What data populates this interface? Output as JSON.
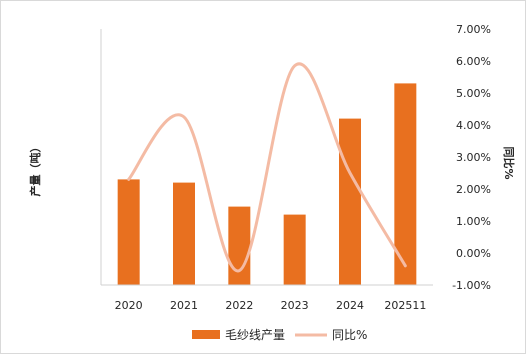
{
  "chart_data": {
    "type": "bar",
    "categories": [
      "2020",
      "2021",
      "2022",
      "2023",
      "2024",
      "202511"
    ],
    "series": [
      {
        "name": "毛纱线产量",
        "type": "bar",
        "axis": "left",
        "color": "#e8701f",
        "values": [
          2.3,
          2.2,
          1.45,
          1.2,
          4.2,
          5.3
        ]
      },
      {
        "name": "同比%",
        "type": "line",
        "axis": "right",
        "color": "#f4bba4",
        "smooth": true,
        "values": [
          2.3,
          4.25,
          -0.55,
          5.85,
          2.5,
          -0.4
        ]
      }
    ],
    "ylabel": "产量（吨）",
    "ylabel_right": "同比%",
    "y_right": {
      "min": -1.0,
      "max": 7.0,
      "ticks": [
        "-1.00%",
        "0.00%",
        "1.00%",
        "2.00%",
        "3.00%",
        "4.00%",
        "5.00%",
        "6.00%",
        "7.00%"
      ]
    },
    "ylim": [
      -1,
      7
    ],
    "left_ticks_shown": false,
    "grid": false,
    "legend": "bottom-center"
  }
}
